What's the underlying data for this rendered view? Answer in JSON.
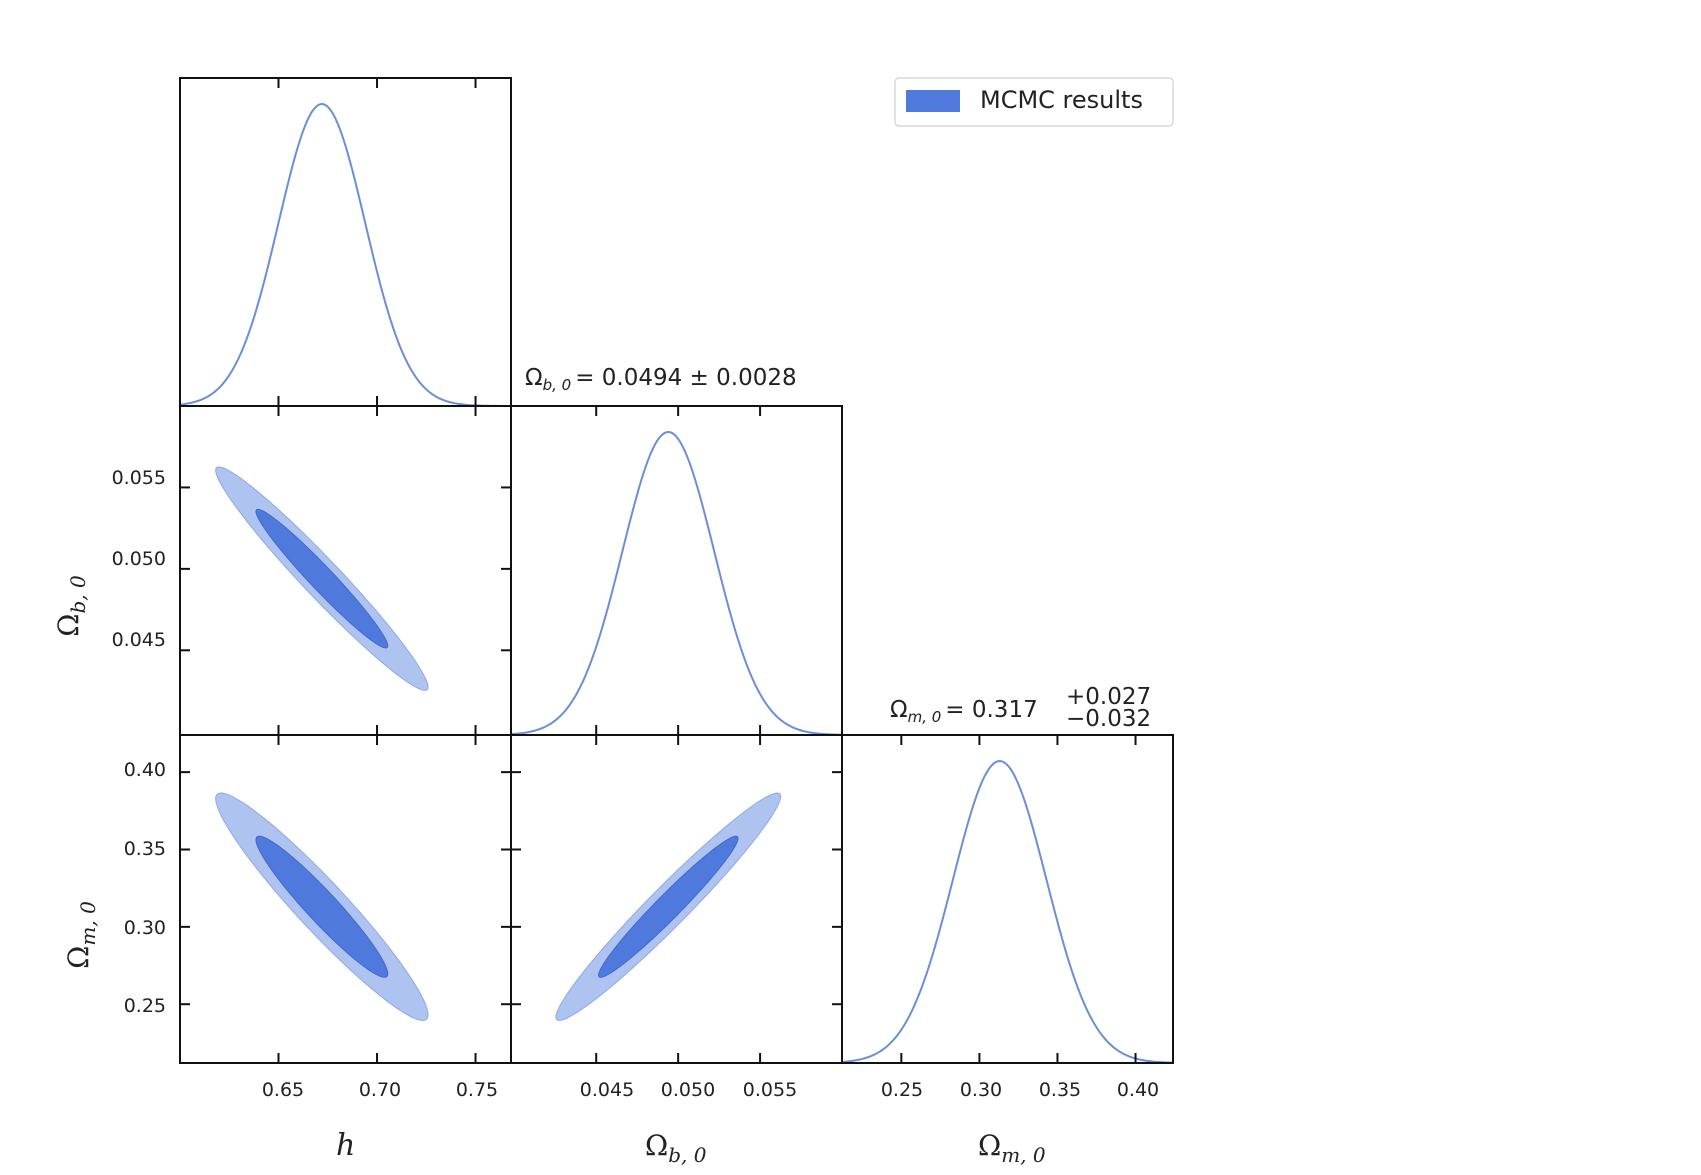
{
  "chart_data": {
    "type": "corner",
    "parameters": [
      {
        "key": "h",
        "label": "h",
        "range": [
          0.6,
          0.768
        ],
        "ticks": [
          "0.65",
          "0.70",
          "0.75"
        ],
        "tick_values": [
          0.65,
          0.7,
          0.75
        ],
        "mean": 0.672,
        "sigma": 0.022
      },
      {
        "key": "omega_b",
        "label_base": "Ω",
        "label_sub": "b, 0",
        "range": [
          0.0398,
          0.06
        ],
        "ticks": [
          "0.045",
          "0.050",
          "0.055"
        ],
        "tick_values": [
          0.045,
          0.05,
          0.055
        ],
        "mean": 0.0494,
        "sigma": 0.0028
      },
      {
        "key": "omega_m",
        "label_base": "Ω",
        "label_sub": "m, 0",
        "range": [
          0.212,
          0.424
        ],
        "ticks": [
          "0.25",
          "0.30",
          "0.35",
          "0.40"
        ],
        "tick_values": [
          0.25,
          0.3,
          0.35,
          0.4
        ],
        "mean": 0.313,
        "sigma": 0.03
      }
    ],
    "row_ticks": {
      "omega_b": [
        "0.055",
        "0.050",
        "0.045"
      ],
      "omega_m": [
        "0.40",
        "0.35",
        "0.30",
        "0.25"
      ]
    },
    "titles": {
      "omega_b": {
        "lhs_base": "Ω",
        "lhs_sub": "b, 0",
        "rhs": "= 0.0494 ± 0.0028"
      },
      "omega_m": {
        "lhs_base": "Ω",
        "lhs_sub": "m, 0",
        "value": "= 0.317",
        "plus": "+0.027",
        "minus": "−0.032"
      }
    },
    "correlations": {
      "h_omega_b": -0.97,
      "h_omega_m": -0.95,
      "omega_b_omega_m": 0.97
    },
    "contour_levels": [
      "68%",
      "95%"
    ],
    "legend": {
      "label": "MCMC results",
      "color": "#4f79dc",
      "position": "top-right"
    },
    "colors": {
      "line": "#6b8fd6",
      "inner": "#4f79dc",
      "outer": "#aec3ef"
    }
  }
}
